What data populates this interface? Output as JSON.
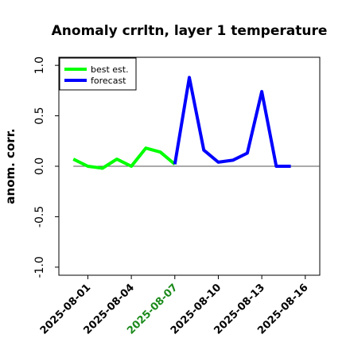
{
  "chart_data": {
    "type": "line",
    "title": "Anomaly crrltn, layer 1 temperature",
    "xlabel": "",
    "ylabel": "anom. corr.",
    "ylim": [
      -1.08,
      1.08
    ],
    "xlim": [
      "2025-07-30",
      "2025-08-17"
    ],
    "y_ticks": [
      "-1.0",
      "-0.5",
      "0.0",
      "0.5",
      "1.0"
    ],
    "x_ticks": [
      "2025-08-01",
      "2025-08-04",
      "2025-08-07",
      "2025-08-10",
      "2025-08-13",
      "2025-08-16"
    ],
    "highlight_tick": "2025-08-07",
    "reference_line": 0,
    "grid": false,
    "legend_position": "top-left",
    "series": [
      {
        "name": "best est.",
        "color": "#00ff00",
        "x": [
          "2025-07-31",
          "2025-08-01",
          "2025-08-02",
          "2025-08-03",
          "2025-08-04",
          "2025-08-05",
          "2025-08-06",
          "2025-08-07"
        ],
        "y": [
          0.07,
          0.0,
          -0.02,
          0.07,
          0.0,
          0.18,
          0.14,
          0.02
        ]
      },
      {
        "name": "forecast",
        "color": "#0000ff",
        "x": [
          "2025-08-07",
          "2025-08-08",
          "2025-08-09",
          "2025-08-10",
          "2025-08-11",
          "2025-08-12",
          "2025-08-13",
          "2025-08-14",
          "2025-08-15"
        ],
        "y": [
          0.02,
          0.88,
          0.16,
          0.04,
          0.06,
          0.13,
          0.74,
          0.0,
          0.0
        ]
      }
    ],
    "colors": {
      "highlight_tick": "#1a8a1a",
      "reference_line": "#555555",
      "text": "#000000"
    }
  }
}
